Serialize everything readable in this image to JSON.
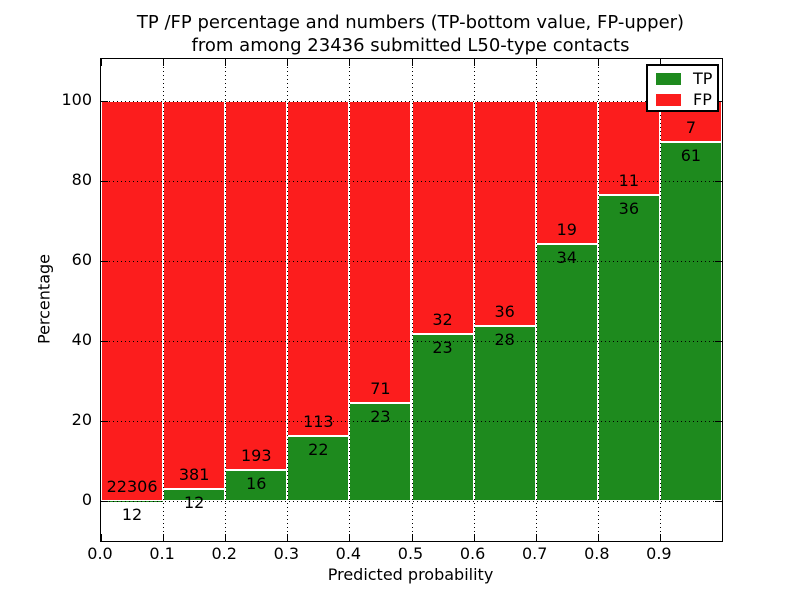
{
  "chart_data": {
    "type": "bar",
    "stacked": true,
    "normalized": "percent",
    "title_line1": "TP /FP percentage and numbers (TP-bottom value, FP-upper)",
    "title_line2": "from among 23436 submitted L50-type contacts",
    "total_contacts": 23436,
    "xlabel": "Predicted probability",
    "ylabel": "Percentage",
    "bin_width": 0.1,
    "categories": [
      0.0,
      0.1,
      0.2,
      0.3,
      0.4,
      0.5,
      0.6,
      0.7,
      0.8,
      0.9
    ],
    "series": [
      {
        "name": "TP",
        "color": "#1e8a1e",
        "values": [
          12,
          12,
          16,
          22,
          23,
          23,
          28,
          34,
          36,
          61
        ]
      },
      {
        "name": "FP",
        "color": "#fc1d1d",
        "values": [
          22306,
          381,
          193,
          113,
          71,
          32,
          36,
          19,
          11,
          7
        ]
      }
    ],
    "tp_percent_derived": [
      0.05,
      3.05,
      7.66,
      16.3,
      24.47,
      41.82,
      43.75,
      64.15,
      76.6,
      89.71
    ],
    "xtick_labels": [
      "0.0",
      "0.1",
      "0.2",
      "0.3",
      "0.4",
      "0.5",
      "0.6",
      "0.7",
      "0.8",
      "0.9"
    ],
    "ytick_values": [
      0,
      20,
      40,
      60,
      80,
      100
    ],
    "xlim": [
      0.0,
      1.0
    ],
    "ylim": [
      -10,
      110.5
    ],
    "grid": "dotted",
    "bar_edge_color": "#ffffff",
    "legend": {
      "position": "upper right",
      "entries": [
        "TP",
        "FP"
      ]
    }
  }
}
